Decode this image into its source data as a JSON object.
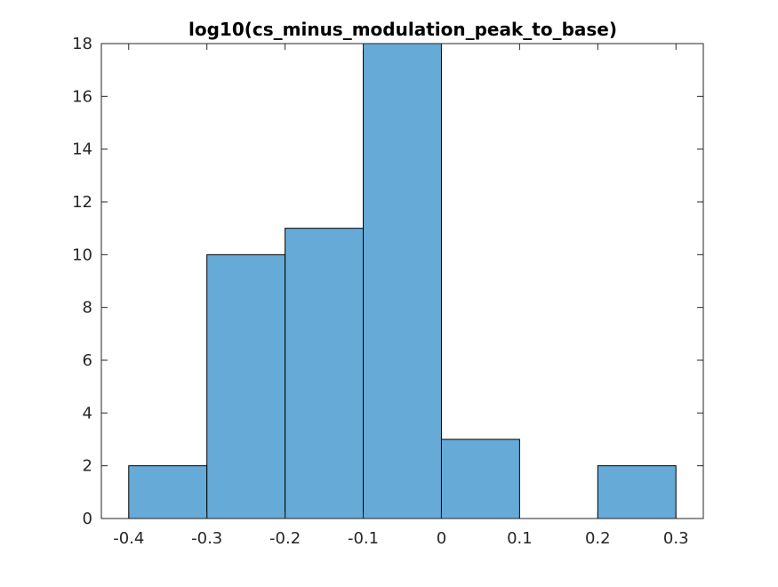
{
  "chart_data": {
    "type": "bar",
    "subtype": "histogram",
    "title": "log10(cs_minus_modulation_peak_to_base)",
    "xlabel": "",
    "ylabel": "",
    "bin_edges": [
      -0.4,
      -0.3,
      -0.2,
      -0.1,
      0.0,
      0.1,
      0.2,
      0.3
    ],
    "values": [
      2,
      10,
      11,
      18,
      3,
      0,
      2
    ],
    "xlim": [
      -0.435,
      0.335
    ],
    "ylim": [
      0,
      18
    ],
    "xticks": [
      -0.4,
      -0.3,
      -0.2,
      -0.1,
      0,
      0.1,
      0.2,
      0.3
    ],
    "xtick_labels": [
      "-0.4",
      "-0.3",
      "-0.2",
      "-0.1",
      "0",
      "0.1",
      "0.2",
      "0.3"
    ],
    "yticks": [
      0,
      2,
      4,
      6,
      8,
      10,
      12,
      14,
      16,
      18
    ],
    "ytick_labels": [
      "0",
      "2",
      "4",
      "6",
      "8",
      "10",
      "12",
      "14",
      "16",
      "18"
    ],
    "grid": false,
    "legend": "none",
    "colors": {
      "bar_fill": "#66aad7",
      "bar_edge": "#000000",
      "axes": "#262626"
    }
  }
}
